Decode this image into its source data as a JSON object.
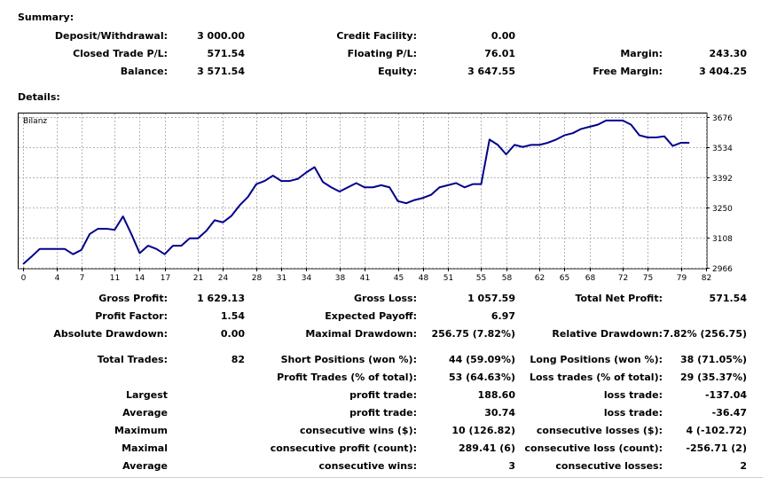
{
  "summary": {
    "title": "Summary:",
    "deposit_label": "Deposit/Withdrawal:",
    "deposit_value": "3 000.00",
    "closed_label": "Closed Trade P/L:",
    "closed_value": "571.54",
    "balance_label": "Balance:",
    "balance_value": "3 571.54",
    "credit_label": "Credit Facility:",
    "credit_value": "0.00",
    "floating_label": "Floating P/L:",
    "floating_value": "76.01",
    "equity_label": "Equity:",
    "equity_value": "3 647.55",
    "margin_label": "Margin:",
    "margin_value": "243.30",
    "free_margin_label": "Free Margin:",
    "free_margin_value": "3 404.25"
  },
  "details": {
    "title": "Details:"
  },
  "chart_data": {
    "type": "line",
    "title": "Bilanz",
    "x_ticks": [
      "0",
      "4",
      "7",
      "11",
      "14",
      "17",
      "21",
      "24",
      "28",
      "31",
      "34",
      "38",
      "41",
      "45",
      "48",
      "51",
      "55",
      "58",
      "62",
      "65",
      "68",
      "72",
      "75",
      "79",
      "82"
    ],
    "y_ticks": [
      "3676",
      "3534",
      "3392",
      "3250",
      "3108",
      "2966"
    ],
    "ylim": [
      2966,
      3676
    ],
    "xlim": [
      0,
      82
    ],
    "line_color": "#00008b",
    "series": [
      {
        "name": "Bilanz",
        "values": [
          2983,
          3018,
          3055,
          3055,
          3055,
          3055,
          3030,
          3050,
          3125,
          3150,
          3150,
          3145,
          3208,
          3125,
          3035,
          3070,
          3055,
          3030,
          3070,
          3070,
          3105,
          3105,
          3140,
          3190,
          3180,
          3210,
          3260,
          3300,
          3360,
          3375,
          3400,
          3375,
          3375,
          3385,
          3415,
          3440,
          3370,
          3345,
          3325,
          3345,
          3365,
          3345,
          3345,
          3355,
          3345,
          3280,
          3270,
          3285,
          3295,
          3310,
          3345,
          3355,
          3365,
          3345,
          3360,
          3360,
          3570,
          3545,
          3500,
          3545,
          3535,
          3545,
          3545,
          3555,
          3570,
          3590,
          3600,
          3620,
          3630,
          3640,
          3660,
          3660,
          3660,
          3640,
          3590,
          3580,
          3580,
          3585,
          3540,
          3555,
          3555
        ]
      }
    ]
  },
  "stats": {
    "gross_profit_label": "Gross Profit:",
    "gross_profit_value": "1 629.13",
    "gross_loss_label": "Gross Loss:",
    "gross_loss_value": "1 057.59",
    "total_net_profit_label": "Total Net Profit:",
    "total_net_profit_value": "571.54",
    "profit_factor_label": "Profit Factor:",
    "profit_factor_value": "1.54",
    "expected_payoff_label": "Expected Payoff:",
    "expected_payoff_value": "6.97",
    "abs_drawdown_label": "Absolute Drawdown:",
    "abs_drawdown_value": "0.00",
    "max_drawdown_label": "Maximal Drawdown:",
    "max_drawdown_value": "256.75 (7.82%)",
    "rel_drawdown_label": "Relative Drawdown:",
    "rel_drawdown_value": "7.82% (256.75)",
    "total_trades_label": "Total Trades:",
    "total_trades_value": "82",
    "short_pos_label": "Short Positions (won %):",
    "short_pos_value": "44 (59.09%)",
    "long_pos_label": "Long Positions (won %):",
    "long_pos_value": "38 (71.05%)",
    "profit_trades_label": "Profit Trades (% of total):",
    "profit_trades_value": "53 (64.63%)",
    "loss_trades_label": "Loss trades (% of total):",
    "loss_trades_value": "29 (35.37%)",
    "largest_label": "Largest",
    "largest_profit_label": "profit trade:",
    "largest_profit_value": "188.60",
    "largest_loss_label": "loss trade:",
    "largest_loss_value": "-137.04",
    "average_label": "Average",
    "average_profit_label": "profit trade:",
    "average_profit_value": "30.74",
    "average_loss_label": "loss trade:",
    "average_loss_value": "-36.47",
    "maximum_label": "Maximum",
    "max_cons_wins_label": "consecutive wins ($):",
    "max_cons_wins_value": "10 (126.82)",
    "max_cons_losses_label": "consecutive losses ($):",
    "max_cons_losses_value": "4 (-102.72)",
    "maximal_label": "Maximal",
    "maximal_cons_profit_label": "consecutive profit (count):",
    "maximal_cons_profit_value": "289.41 (6)",
    "maximal_cons_loss_label": "consecutive loss (count):",
    "maximal_cons_loss_value": "-256.71 (2)",
    "average2_label": "Average",
    "avg_cons_wins_label": "consecutive wins:",
    "avg_cons_wins_value": "3",
    "avg_cons_losses_label": "consecutive losses:",
    "avg_cons_losses_value": "2"
  }
}
